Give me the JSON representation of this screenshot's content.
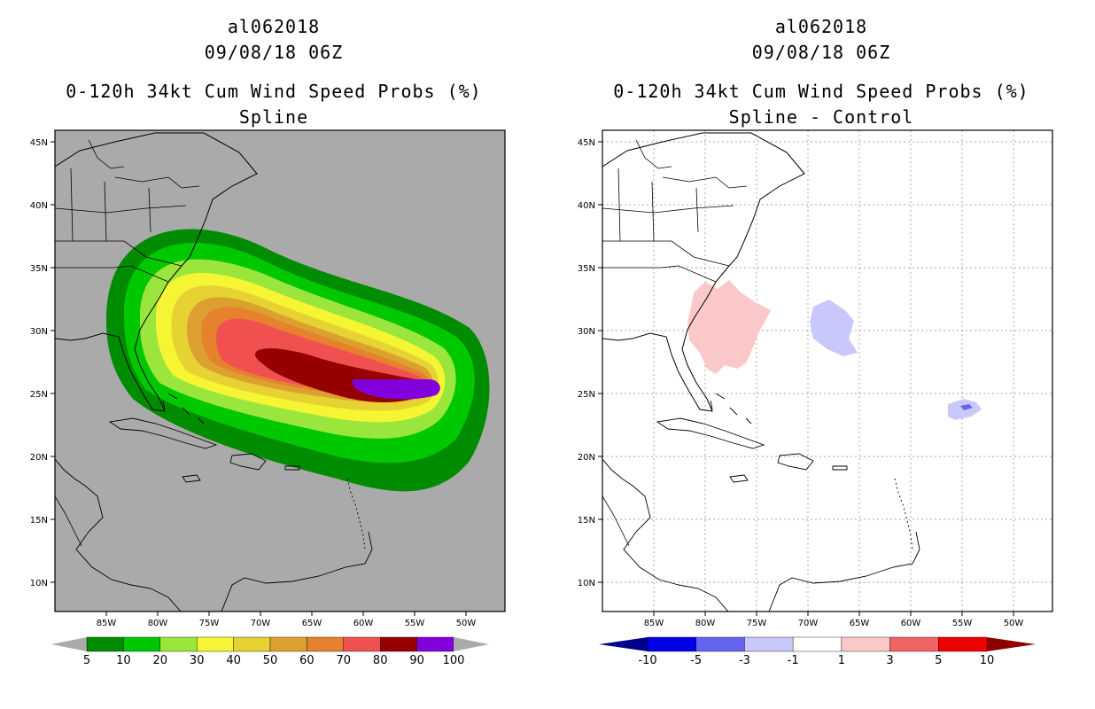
{
  "left": {
    "storm_id": "al062018",
    "datetime": "09/08/18 06Z",
    "product": "0-120h 34kt Cum Wind Speed Probs (%)",
    "subtitle": "Spline",
    "colorbar": {
      "labels": [
        "5",
        "10",
        "20",
        "30",
        "40",
        "50",
        "60",
        "70",
        "80",
        "90",
        "100"
      ],
      "colors": [
        "#008c00",
        "#00c800",
        "#9be63c",
        "#f5f534",
        "#e6d232",
        "#dca030",
        "#e6822d",
        "#f05050",
        "#960000",
        "#8200dc"
      ]
    }
  },
  "right": {
    "storm_id": "al062018",
    "datetime": "09/08/18 06Z",
    "product": "0-120h 34kt Cum Wind Speed Probs (%)",
    "subtitle": "Spline - Control",
    "colorbar": {
      "labels": [
        "-10",
        "-5",
        "-3",
        "-1",
        "1",
        "3",
        "5",
        "10"
      ],
      "colors": [
        "#0000e6",
        "#6464f0",
        "#c8c8fa",
        "#ffffff",
        "#fac8c8",
        "#f06464",
        "#f00000"
      ],
      "end_low": "#00008c",
      "end_high": "#8c0000"
    }
  },
  "axes": {
    "lat_labels": [
      "45N",
      "40N",
      "35N",
      "30N",
      "25N",
      "20N",
      "15N",
      "10N"
    ],
    "lon_labels": [
      "85W",
      "80W",
      "75W",
      "70W",
      "65W",
      "60W",
      "55W",
      "50W"
    ]
  }
}
